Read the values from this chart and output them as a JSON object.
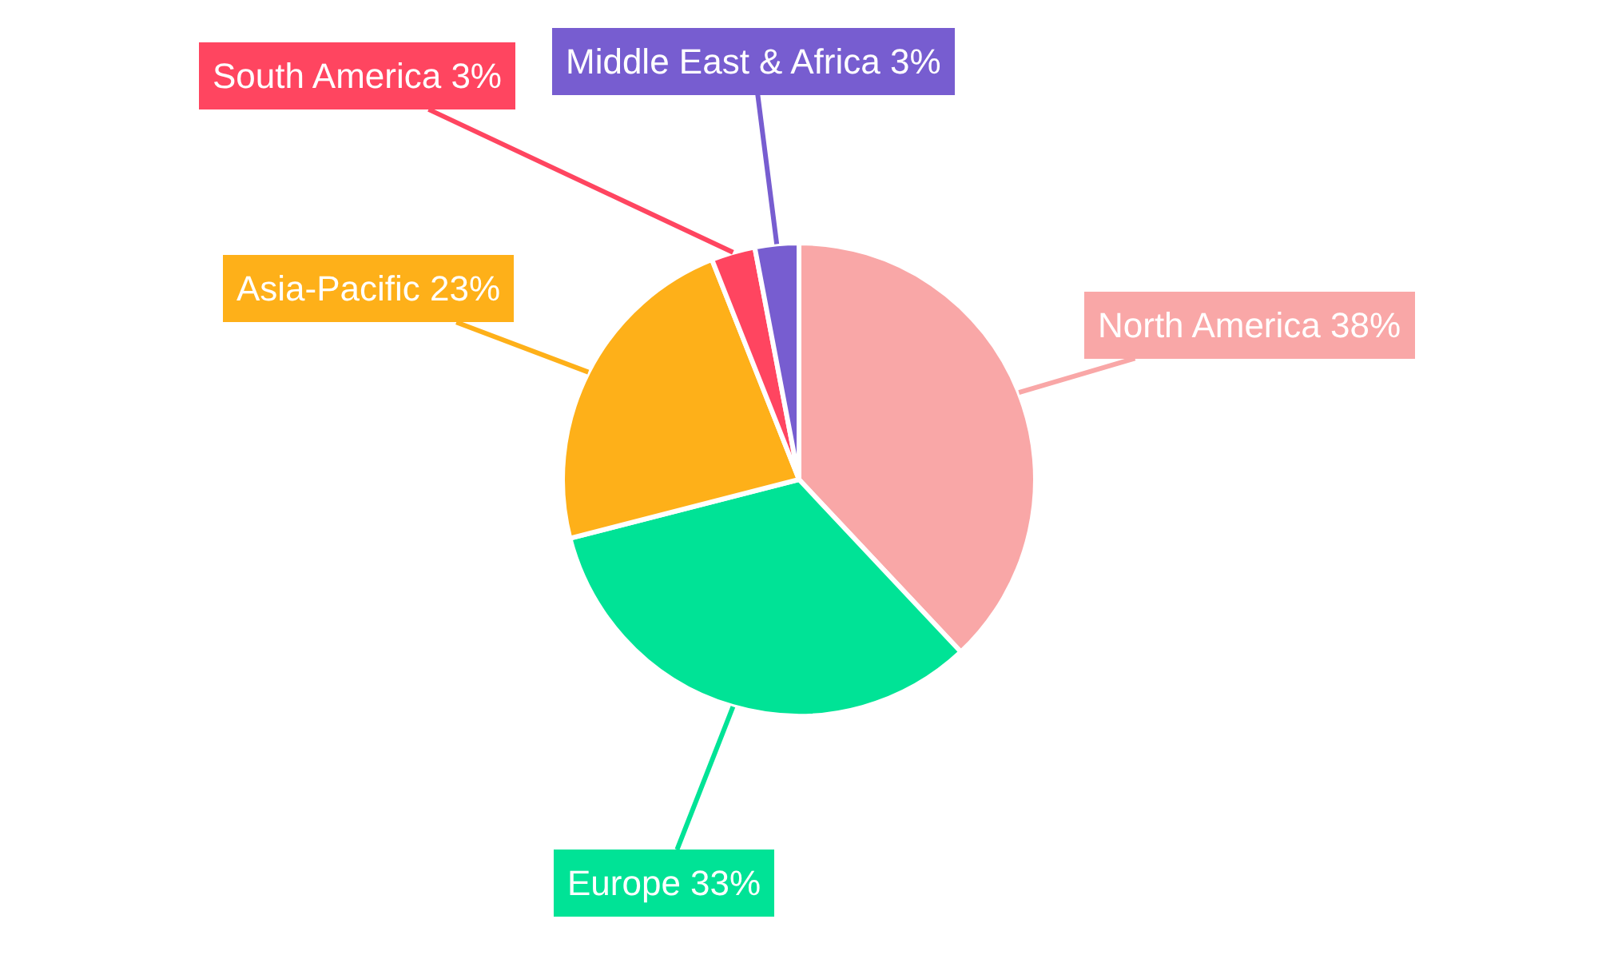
{
  "chart_data": {
    "type": "pie",
    "categories": [
      "North America",
      "Europe",
      "Asia-Pacific",
      "South America",
      "Middle East & Africa"
    ],
    "values": [
      38,
      33,
      23,
      3,
      3
    ],
    "colors": [
      "#f9a7a7",
      "#00e396",
      "#feb019",
      "#ff4560",
      "#775dd0"
    ],
    "value_labels": [
      "38%",
      "33%",
      "23%",
      "3%",
      "3%"
    ],
    "legend": false
  }
}
